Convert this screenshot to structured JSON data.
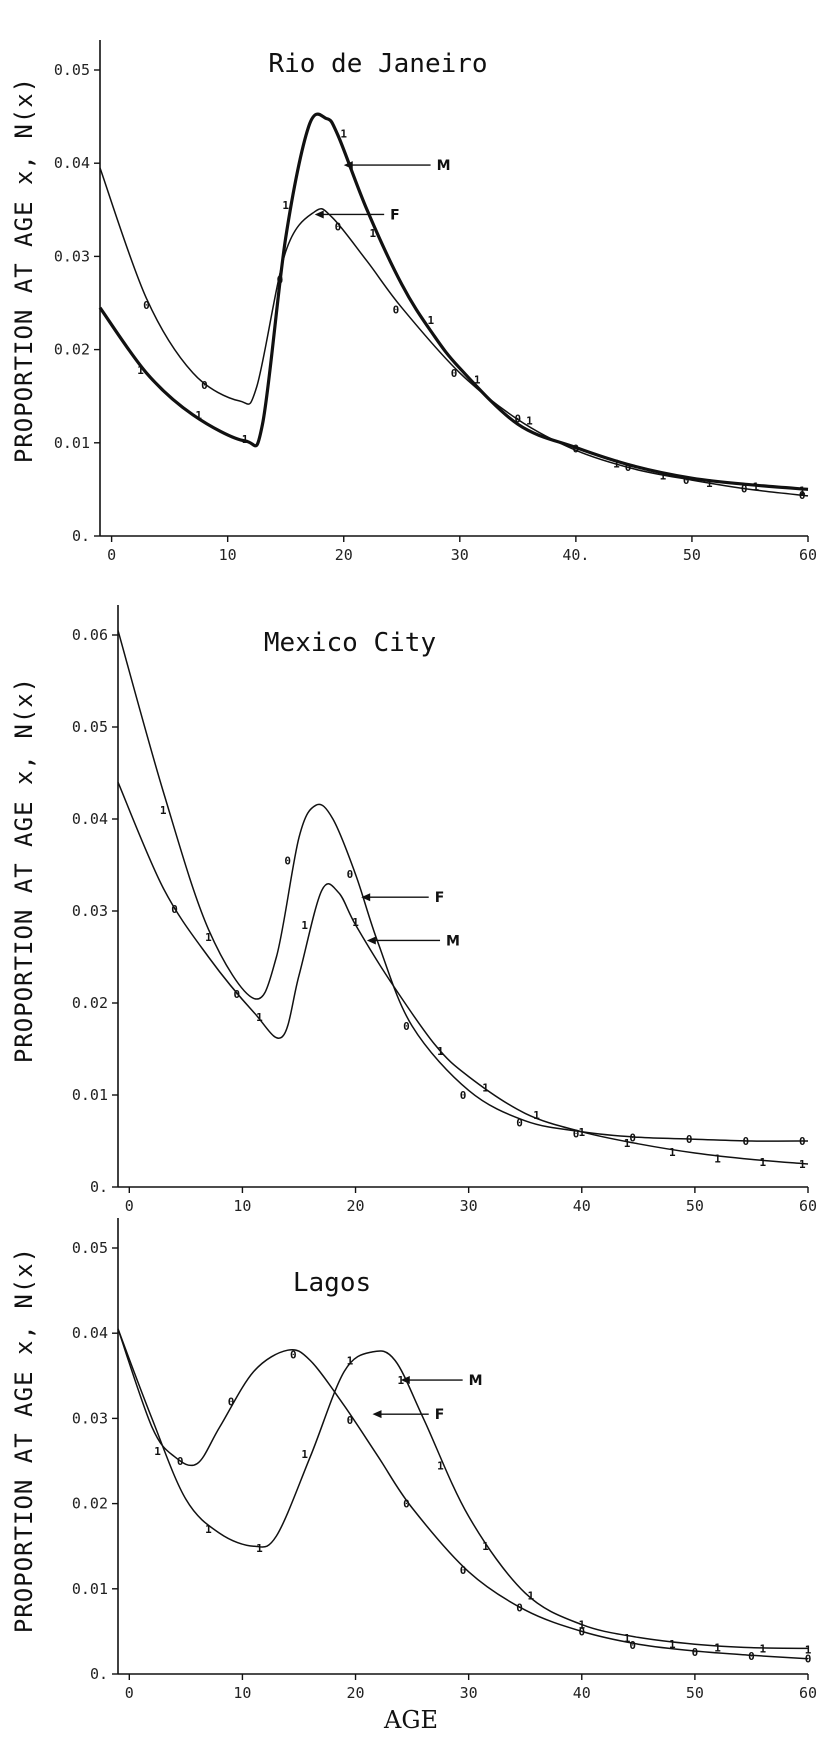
{
  "figure": {
    "xlabel": "AGE"
  },
  "chart_data": [
    {
      "type": "line",
      "title": "Rio de Janeiro",
      "ylabel": "PROPORTION AT AGE x, N(x)",
      "xlim": [
        -1,
        60
      ],
      "ylim": [
        0,
        0.05
      ],
      "xticks": [
        "0",
        "10",
        "20",
        "30",
        "40.",
        "50",
        "60"
      ],
      "yticks": [
        "0.",
        "0.01",
        "0.02",
        "0.03",
        "0.04",
        "0.05"
      ],
      "legend": {
        "M": "M",
        "F": "F"
      },
      "series": [
        {
          "name": "M",
          "bold": true,
          "x": [
            -1,
            3,
            7,
            11.5,
            13,
            15,
            17,
            18.5,
            19.5,
            22,
            25,
            27.5,
            30,
            35,
            40,
            45,
            50,
            55,
            60
          ],
          "y": [
            0.0245,
            0.0175,
            0.013,
            0.0102,
            0.012,
            0.032,
            0.044,
            0.0448,
            0.043,
            0.035,
            0.027,
            0.022,
            0.018,
            0.012,
            0.0095,
            0.0075,
            0.0062,
            0.0055,
            0.005
          ]
        },
        {
          "name": "F",
          "bold": false,
          "x": [
            -1,
            3,
            7,
            11,
            12.5,
            15,
            17.5,
            19,
            22,
            25,
            30,
            35,
            40,
            45,
            50,
            55,
            60
          ],
          "y": [
            0.0395,
            0.0255,
            0.0175,
            0.0145,
            0.016,
            0.0305,
            0.0348,
            0.0342,
            0.0295,
            0.0245,
            0.0175,
            0.0125,
            0.0092,
            0.0072,
            0.006,
            0.005,
            0.0043
          ]
        }
      ],
      "points": [
        {
          "label": "0",
          "x": 3,
          "y": 0.0248
        },
        {
          "label": "0",
          "x": 8,
          "y": 0.0162
        },
        {
          "label": "0",
          "x": 14.5,
          "y": 0.0275
        },
        {
          "label": "0",
          "x": 19.5,
          "y": 0.0332
        },
        {
          "label": "0",
          "x": 24.5,
          "y": 0.0243
        },
        {
          "label": "0",
          "x": 29.5,
          "y": 0.0175
        },
        {
          "label": "0",
          "x": 35,
          "y": 0.0126
        },
        {
          "label": "0",
          "x": 40,
          "y": 0.0094
        },
        {
          "label": "0",
          "x": 44.5,
          "y": 0.0074
        },
        {
          "label": "0",
          "x": 49.5,
          "y": 0.006
        },
        {
          "label": "0",
          "x": 54.5,
          "y": 0.0051
        },
        {
          "label": "0",
          "x": 59.5,
          "y": 0.0044
        },
        {
          "label": "1",
          "x": 2.5,
          "y": 0.0178
        },
        {
          "label": "1",
          "x": 7.5,
          "y": 0.013
        },
        {
          "label": "1",
          "x": 11.5,
          "y": 0.0104
        },
        {
          "label": "1",
          "x": 15,
          "y": 0.0355
        },
        {
          "label": "1",
          "x": 20,
          "y": 0.0432
        },
        {
          "label": "1",
          "x": 22.5,
          "y": 0.0325
        },
        {
          "label": "1",
          "x": 27.5,
          "y": 0.0232
        },
        {
          "label": "1",
          "x": 31.5,
          "y": 0.0168
        },
        {
          "label": "1",
          "x": 36,
          "y": 0.0124
        },
        {
          "label": "1",
          "x": 43.5,
          "y": 0.0078
        },
        {
          "label": "1",
          "x": 47.5,
          "y": 0.0065
        },
        {
          "label": "1",
          "x": 51.5,
          "y": 0.0057
        },
        {
          "label": "1",
          "x": 55.5,
          "y": 0.0053
        },
        {
          "label": "1",
          "x": 59.5,
          "y": 0.0049
        }
      ]
    },
    {
      "type": "line",
      "title": "Mexico City",
      "ylabel": "PROPORTION AT AGE x, N(x)",
      "xlim": [
        -1,
        60
      ],
      "ylim": [
        0,
        0.06
      ],
      "xticks": [
        "0",
        "10",
        "20",
        "30",
        "40",
        "50",
        "60"
      ],
      "yticks": [
        "0.",
        "0.01",
        "0.02",
        "0.03",
        "0.04",
        "0.05",
        "0.06"
      ],
      "legend": {
        "F": "F",
        "M": "M"
      },
      "series": [
        {
          "name": "F",
          "bold": false,
          "x": [
            -1,
            3,
            7,
            11,
            13,
            15,
            16.5,
            18,
            20,
            22,
            25,
            30,
            35,
            40,
            45,
            50,
            55,
            60
          ],
          "y": [
            0.0605,
            0.043,
            0.028,
            0.0205,
            0.025,
            0.038,
            0.0415,
            0.04,
            0.034,
            0.0265,
            0.0175,
            0.0105,
            0.0072,
            0.006,
            0.0054,
            0.0052,
            0.005,
            0.005
          ]
        },
        {
          "name": "M",
          "bold": false,
          "x": [
            -1,
            3,
            7,
            11,
            13.5,
            15,
            17,
            18.5,
            20,
            23,
            27,
            30,
            35,
            40,
            45,
            50,
            55,
            60
          ],
          "y": [
            0.044,
            0.0325,
            0.025,
            0.019,
            0.0163,
            0.023,
            0.0322,
            0.032,
            0.0285,
            0.0225,
            0.0155,
            0.012,
            0.008,
            0.006,
            0.0047,
            0.0037,
            0.003,
            0.0025
          ]
        }
      ],
      "points": [
        {
          "label": "0",
          "x": 4,
          "y": 0.0302
        },
        {
          "label": "0",
          "x": 9.5,
          "y": 0.021
        },
        {
          "label": "0",
          "x": 14,
          "y": 0.0355
        },
        {
          "label": "0",
          "x": 19.5,
          "y": 0.034
        },
        {
          "label": "0",
          "x": 24.5,
          "y": 0.0175
        },
        {
          "label": "0",
          "x": 29.5,
          "y": 0.01
        },
        {
          "label": "0",
          "x": 34.5,
          "y": 0.007
        },
        {
          "label": "0",
          "x": 39.5,
          "y": 0.0058
        },
        {
          "label": "0",
          "x": 44.5,
          "y": 0.0054
        },
        {
          "label": "0",
          "x": 49.5,
          "y": 0.0052
        },
        {
          "label": "0",
          "x": 54.5,
          "y": 0.005
        },
        {
          "label": "0",
          "x": 59.5,
          "y": 0.005
        },
        {
          "label": "1",
          "x": 3,
          "y": 0.041
        },
        {
          "label": "1",
          "x": 7,
          "y": 0.0272
        },
        {
          "label": "1",
          "x": 11.5,
          "y": 0.0185
        },
        {
          "label": "1",
          "x": 15.5,
          "y": 0.0285
        },
        {
          "label": "1",
          "x": 20,
          "y": 0.0288
        },
        {
          "label": "1",
          "x": 27.5,
          "y": 0.0148
        },
        {
          "label": "1",
          "x": 31.5,
          "y": 0.0108
        },
        {
          "label": "1",
          "x": 36,
          "y": 0.0078
        },
        {
          "label": "1",
          "x": 40,
          "y": 0.006
        },
        {
          "label": "1",
          "x": 44,
          "y": 0.0048
        },
        {
          "label": "1",
          "x": 48,
          "y": 0.0038
        },
        {
          "label": "1",
          "x": 52,
          "y": 0.0031
        },
        {
          "label": "1",
          "x": 56,
          "y": 0.0027
        },
        {
          "label": "1",
          "x": 59.5,
          "y": 0.0025
        }
      ]
    },
    {
      "type": "line",
      "title": "Lagos",
      "ylabel": "PROPORTION AT AGE x, N(x)",
      "xlim": [
        -1,
        60
      ],
      "ylim": [
        0,
        0.05
      ],
      "xticks": [
        "0",
        "10",
        "20",
        "30",
        "40",
        "50",
        "60"
      ],
      "yticks": [
        "0.",
        "0.01",
        "0.02",
        "0.03",
        "0.04",
        "0.05"
      ],
      "legend": {
        "M": "M",
        "F": "F"
      },
      "series": [
        {
          "name": "F",
          "bold": false,
          "x": [
            -1,
            2,
            4,
            6,
            8,
            11,
            14,
            16,
            19,
            22,
            25,
            30,
            35,
            40,
            45,
            50,
            55,
            60
          ],
          "y": [
            0.0405,
            0.029,
            0.0255,
            0.0247,
            0.029,
            0.0355,
            0.038,
            0.0368,
            0.0315,
            0.0255,
            0.0195,
            0.012,
            0.0075,
            0.005,
            0.0035,
            0.0027,
            0.0022,
            0.0018
          ]
        },
        {
          "name": "M",
          "bold": false,
          "x": [
            -1,
            2,
            5,
            8,
            11,
            13,
            16,
            19,
            21.5,
            23.5,
            26,
            30,
            35,
            40,
            45,
            50,
            55,
            60
          ],
          "y": [
            0.0405,
            0.03,
            0.0205,
            0.0165,
            0.015,
            0.0162,
            0.0255,
            0.0355,
            0.0378,
            0.0368,
            0.03,
            0.0185,
            0.0095,
            0.0058,
            0.0043,
            0.0035,
            0.0031,
            0.003
          ]
        }
      ],
      "points": [
        {
          "label": "0",
          "x": 4.5,
          "y": 0.025
        },
        {
          "label": "0",
          "x": 9,
          "y": 0.032
        },
        {
          "label": "0",
          "x": 14.5,
          "y": 0.0375
        },
        {
          "label": "0",
          "x": 19.5,
          "y": 0.0298
        },
        {
          "label": "0",
          "x": 24.5,
          "y": 0.02
        },
        {
          "label": "0",
          "x": 29.5,
          "y": 0.0122
        },
        {
          "label": "0",
          "x": 34.5,
          "y": 0.0078
        },
        {
          "label": "0",
          "x": 40,
          "y": 0.005
        },
        {
          "label": "0",
          "x": 44.5,
          "y": 0.0034
        },
        {
          "label": "0",
          "x": 50,
          "y": 0.0026
        },
        {
          "label": "0",
          "x": 55,
          "y": 0.0021
        },
        {
          "label": "0",
          "x": 60,
          "y": 0.0018
        },
        {
          "label": "1",
          "x": 2.5,
          "y": 0.0262
        },
        {
          "label": "1",
          "x": 7,
          "y": 0.017
        },
        {
          "label": "1",
          "x": 11.5,
          "y": 0.0148
        },
        {
          "label": "1",
          "x": 15.5,
          "y": 0.0258
        },
        {
          "label": "1",
          "x": 19.5,
          "y": 0.0368
        },
        {
          "label": "1",
          "x": 24,
          "y": 0.0345
        },
        {
          "label": "1",
          "x": 27.5,
          "y": 0.0245
        },
        {
          "label": "1",
          "x": 31.5,
          "y": 0.015
        },
        {
          "label": "1",
          "x": 35.5,
          "y": 0.0092
        },
        {
          "label": "1",
          "x": 40,
          "y": 0.0058
        },
        {
          "label": "1",
          "x": 44,
          "y": 0.0042
        },
        {
          "label": "1",
          "x": 48,
          "y": 0.0035
        },
        {
          "label": "1",
          "x": 52,
          "y": 0.0031
        },
        {
          "label": "1",
          "x": 56,
          "y": 0.003
        },
        {
          "label": "1",
          "x": 60,
          "y": 0.0029
        }
      ]
    }
  ]
}
